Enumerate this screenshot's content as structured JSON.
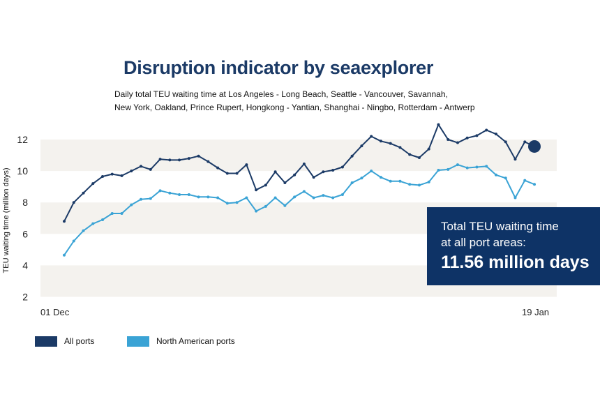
{
  "title": "Disruption indicator by seaexplorer",
  "subtitle_lines": [
    "Daily total TEU waiting time at Los Angeles - Long Beach, Seattle - Vancouver, Savannah,",
    "New York, Oakland, Prince Rupert, Hongkong - Yantian, Shanghai - Ningbo, Rotterdam - Antwerp"
  ],
  "callout": {
    "line1": "Total TEU waiting time",
    "line2": "at all port areas:",
    "value": "11.56 million days"
  },
  "legend": [
    {
      "label": "All ports",
      "color": "#1b3a66"
    },
    {
      "label": "North American ports",
      "color": "#3aa3d5"
    }
  ],
  "colors": {
    "all_ports": "#1b3a66",
    "north_american": "#3aa3d5",
    "band": "#f4f2ee",
    "callout_bg": "#0e3366"
  },
  "chart_data": {
    "type": "line",
    "title": "Disruption indicator by seaexplorer",
    "ylabel": "TEU waiting time (million days)",
    "xlabel": "",
    "ylim": [
      2,
      13
    ],
    "yticks": [
      2,
      4,
      6,
      8,
      10,
      12
    ],
    "xtick_labels": [
      {
        "index": 0,
        "label": "01 Dec"
      },
      {
        "index": 49,
        "label": "19 Jan"
      }
    ],
    "grid": "alternating horizontal bands",
    "legend_position": "bottom-left",
    "series": [
      {
        "name": "All ports",
        "color": "#1b3a66",
        "values": [
          6.8,
          8.0,
          8.6,
          9.2,
          9.65,
          9.8,
          9.7,
          10.0,
          10.3,
          10.1,
          10.75,
          10.7,
          10.7,
          10.8,
          10.95,
          10.6,
          10.2,
          9.85,
          9.85,
          10.4,
          8.8,
          9.1,
          9.95,
          9.25,
          9.75,
          10.45,
          9.6,
          9.95,
          10.05,
          10.25,
          10.95,
          11.6,
          12.2,
          11.9,
          11.75,
          11.5,
          11.05,
          10.85,
          11.4,
          12.95,
          12.0,
          11.8,
          12.1,
          12.25,
          12.6,
          12.35,
          11.85,
          10.75,
          11.85,
          11.56
        ],
        "final_marker": true
      },
      {
        "name": "North American ports",
        "color": "#3aa3d5",
        "values": [
          4.65,
          5.55,
          6.2,
          6.65,
          6.9,
          7.3,
          7.3,
          7.85,
          8.2,
          8.25,
          8.75,
          8.6,
          8.5,
          8.5,
          8.35,
          8.35,
          8.3,
          7.95,
          8.0,
          8.3,
          7.45,
          7.75,
          8.3,
          7.8,
          8.35,
          8.7,
          8.3,
          8.45,
          8.3,
          8.5,
          9.25,
          9.55,
          10.0,
          9.6,
          9.35,
          9.35,
          9.15,
          9.1,
          9.3,
          10.05,
          10.1,
          10.4,
          10.2,
          10.25,
          10.3,
          9.75,
          9.55,
          8.3,
          9.4,
          9.15
        ]
      }
    ]
  }
}
